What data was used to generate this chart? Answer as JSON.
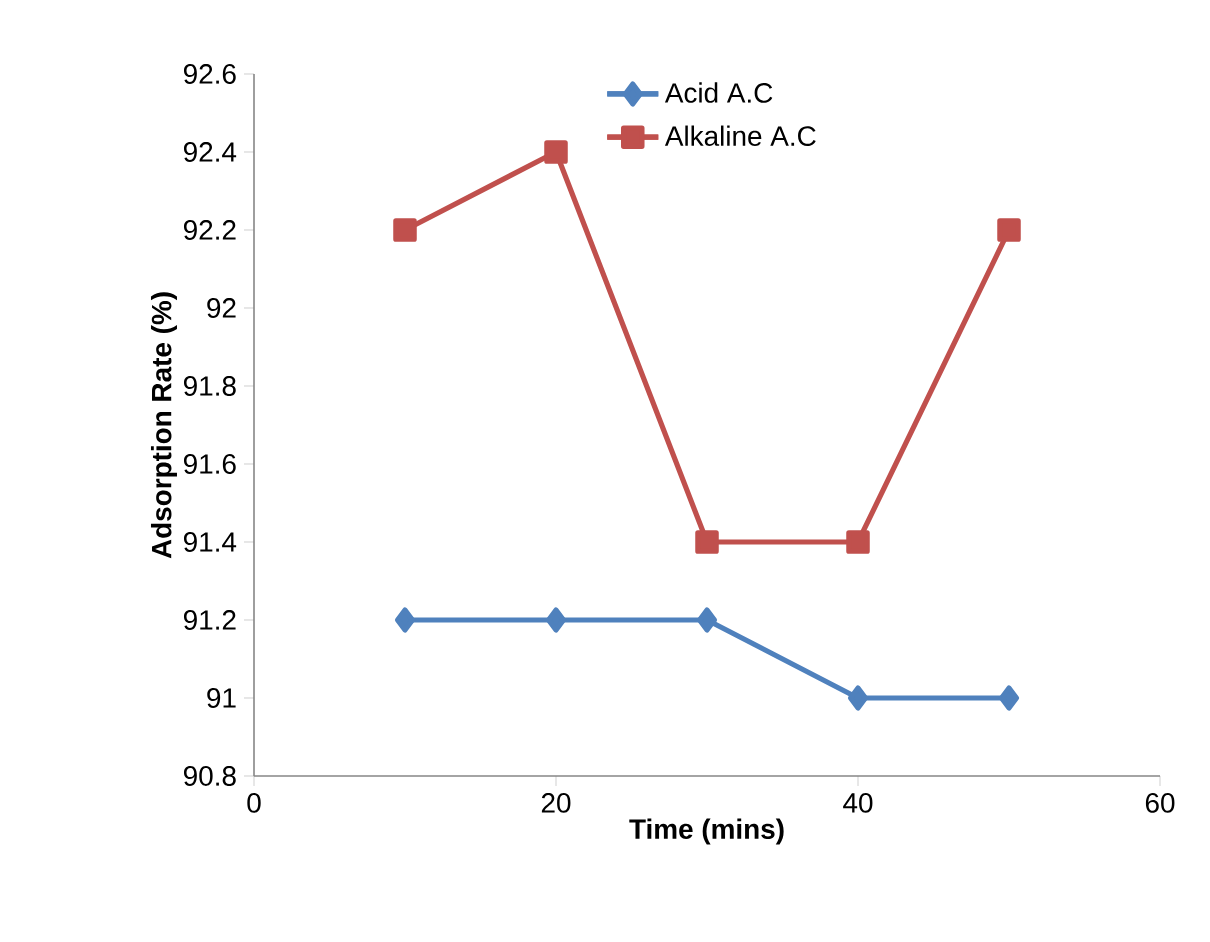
{
  "chart_data": {
    "type": "line",
    "xlabel": "Time (mins)",
    "ylabel": "Adsorption Rate (%)",
    "x": [
      10,
      20,
      30,
      40,
      50
    ],
    "series": [
      {
        "name": "Acid A.C",
        "color": "#4f81bd",
        "marker": "diamond",
        "values": [
          91.2,
          91.2,
          91.2,
          91.0,
          91.0
        ]
      },
      {
        "name": "Alkaline A.C",
        "color": "#c0504d",
        "marker": "square",
        "values": [
          92.2,
          92.4,
          91.4,
          91.4,
          92.2
        ]
      }
    ],
    "xlim": [
      0,
      60
    ],
    "xticks": [
      0,
      20,
      40,
      60
    ],
    "ylim": [
      90.8,
      92.6
    ],
    "yticks": [
      90.8,
      91,
      91.2,
      91.4,
      91.6,
      91.8,
      92,
      92.2,
      92.4,
      92.6
    ],
    "legend": "top",
    "grid": false,
    "line_style": "solid"
  }
}
